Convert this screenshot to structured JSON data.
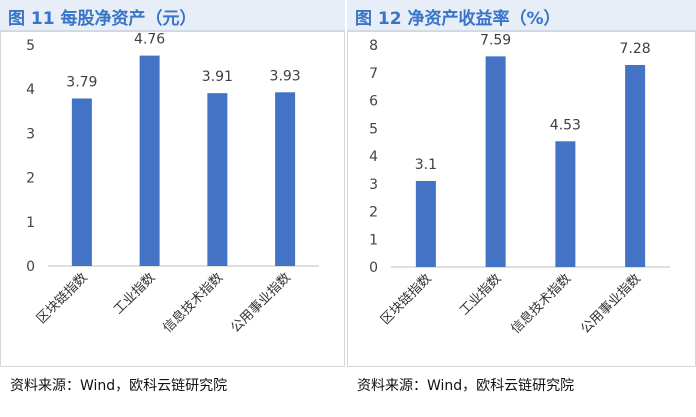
{
  "panels": [
    {
      "title": "图 11 每股净资产（元）",
      "source": "资料来源：Wind，欧科云链研究院"
    },
    {
      "title": "图 12 净资产收益率（%）",
      "source": "资料来源：Wind，欧科云链研究院"
    }
  ],
  "chart_data": [
    {
      "type": "bar",
      "title": "图 11 每股净资产（元）",
      "categories": [
        "区块链指数",
        "工业指数",
        "信息技术指数",
        "公用事业指数"
      ],
      "values": [
        3.79,
        4.76,
        3.91,
        3.93
      ],
      "value_labels": [
        "3.79",
        "4.76",
        "3.91",
        "3.93"
      ],
      "ylim": [
        0,
        5
      ],
      "yticks": [
        "0",
        "1",
        "2",
        "3",
        "4",
        "5"
      ],
      "xlabel": "",
      "ylabel": "",
      "grid": false,
      "bar_color": "#4472c4"
    },
    {
      "type": "bar",
      "title": "图 12 净资产收益率（%）",
      "categories": [
        "区块链指数",
        "工业指数",
        "信息技术指数",
        "公用事业指数"
      ],
      "values": [
        3.1,
        7.59,
        4.53,
        7.28
      ],
      "value_labels": [
        "3.1",
        "7.59",
        "4.53",
        "7.28"
      ],
      "ylim": [
        0,
        8
      ],
      "yticks": [
        "0",
        "1",
        "2",
        "3",
        "4",
        "5",
        "6",
        "7",
        "8"
      ],
      "xlabel": "",
      "ylabel": "",
      "grid": false,
      "bar_color": "#4472c4"
    }
  ]
}
